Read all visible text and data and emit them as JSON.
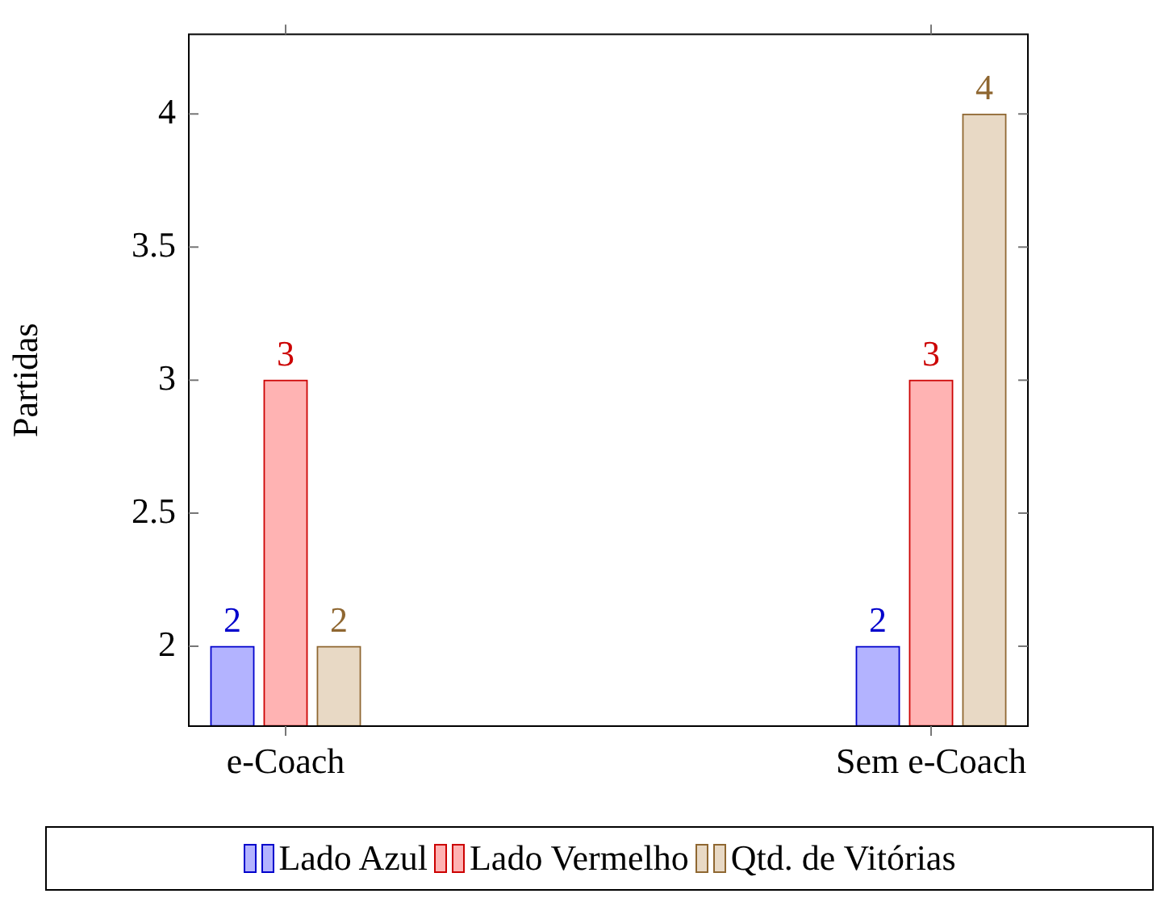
{
  "chart_data": {
    "type": "bar",
    "ylabel": "Partidas",
    "categories": [
      "e-Coach",
      "Sem e-Coach"
    ],
    "series": [
      {
        "name": "Lado Azul",
        "color": "#b3b3ff",
        "values": [
          2,
          2
        ]
      },
      {
        "name": "Lado Vermelho",
        "color": "#ffb3b3",
        "values": [
          3,
          3
        ]
      },
      {
        "name": "Qtd. de Vitórias",
        "color": "#e8d9c5",
        "values": [
          2,
          4
        ]
      }
    ],
    "ylim": [
      1.7,
      4.3
    ],
    "yticks": [
      2,
      2.5,
      3,
      3.5,
      4
    ],
    "data_labels": true,
    "grid": false,
    "legend": "bottom"
  }
}
